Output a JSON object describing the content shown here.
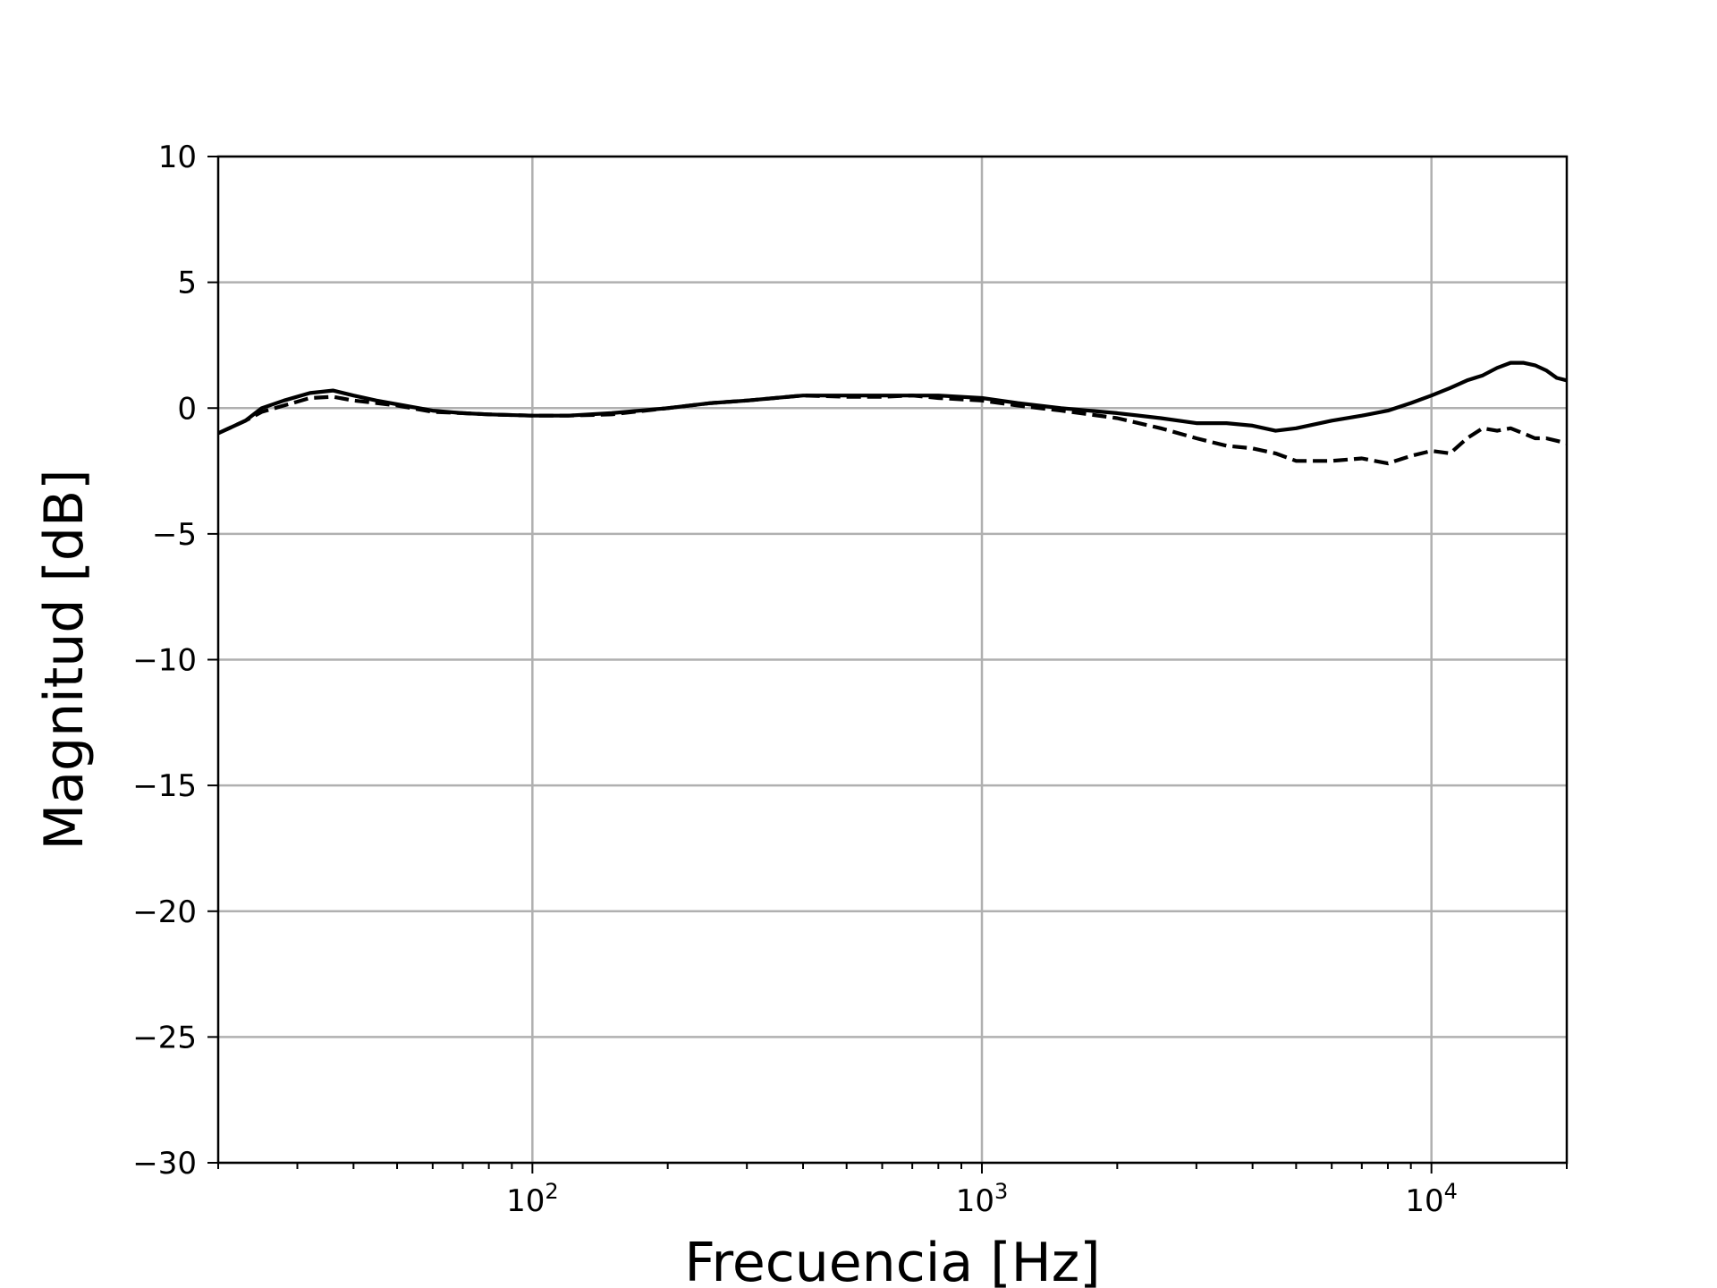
{
  "chart_data": {
    "type": "line",
    "xlabel": "Frecuencia [Hz]",
    "ylabel": "Magnitud [dB]",
    "xscale": "log",
    "xlim": [
      20,
      20000
    ],
    "ylim": [
      -30,
      10
    ],
    "grid": true,
    "yticks": [
      10,
      5,
      0,
      -5,
      -10,
      -15,
      -20,
      -25,
      -30
    ],
    "yticklabels": [
      "10",
      "5",
      "0",
      "−5",
      "−10",
      "−15",
      "−20",
      "−25",
      "−30"
    ],
    "xticks": [
      {
        "value": 100,
        "base": "10",
        "exp": "2"
      },
      {
        "value": 1000,
        "base": "10",
        "exp": "3"
      },
      {
        "value": 10000,
        "base": "10",
        "exp": "4"
      }
    ],
    "series": [
      {
        "style": "solid",
        "color": "#000000",
        "x": [
          20,
          23,
          25,
          28,
          32,
          36,
          40,
          45,
          50,
          60,
          70,
          80,
          100,
          120,
          150,
          200,
          250,
          300,
          400,
          500,
          600,
          700,
          800,
          1000,
          1200,
          1500,
          2000,
          2500,
          3000,
          3500,
          4000,
          4500,
          5000,
          6000,
          7000,
          8000,
          9000,
          10000,
          11000,
          12000,
          13000,
          14000,
          15000,
          16000,
          17000,
          18000,
          19000,
          20000
        ],
        "y": [
          -1.0,
          -0.5,
          0.0,
          0.3,
          0.6,
          0.7,
          0.5,
          0.3,
          0.15,
          -0.1,
          -0.2,
          -0.25,
          -0.3,
          -0.3,
          -0.2,
          0.0,
          0.2,
          0.3,
          0.5,
          0.5,
          0.5,
          0.5,
          0.5,
          0.4,
          0.2,
          0.0,
          -0.2,
          -0.4,
          -0.6,
          -0.6,
          -0.7,
          -0.9,
          -0.8,
          -0.5,
          -0.3,
          -0.1,
          0.2,
          0.5,
          0.8,
          1.1,
          1.3,
          1.6,
          1.8,
          1.8,
          1.7,
          1.5,
          1.2,
          1.1
        ]
      },
      {
        "style": "dashed",
        "color": "#000000",
        "x": [
          20,
          23,
          25,
          28,
          32,
          36,
          40,
          45,
          50,
          60,
          70,
          80,
          100,
          120,
          150,
          200,
          250,
          300,
          400,
          500,
          600,
          700,
          800,
          1000,
          1200,
          1500,
          2000,
          2500,
          3000,
          3500,
          4000,
          4500,
          5000,
          6000,
          7000,
          8000,
          9000,
          10000,
          11000,
          12000,
          13000,
          14000,
          15000,
          16000,
          17000,
          18000,
          19000,
          20000
        ],
        "y": [
          -1.0,
          -0.5,
          -0.15,
          0.1,
          0.4,
          0.45,
          0.3,
          0.2,
          0.1,
          -0.15,
          -0.2,
          -0.25,
          -0.3,
          -0.3,
          -0.25,
          0.0,
          0.2,
          0.3,
          0.5,
          0.45,
          0.45,
          0.5,
          0.4,
          0.3,
          0.1,
          -0.1,
          -0.4,
          -0.8,
          -1.2,
          -1.5,
          -1.6,
          -1.8,
          -2.1,
          -2.1,
          -2.0,
          -2.2,
          -1.9,
          -1.7,
          -1.8,
          -1.2,
          -0.8,
          -0.9,
          -0.8,
          -1.0,
          -1.2,
          -1.2,
          -1.3,
          -1.4
        ]
      }
    ]
  }
}
